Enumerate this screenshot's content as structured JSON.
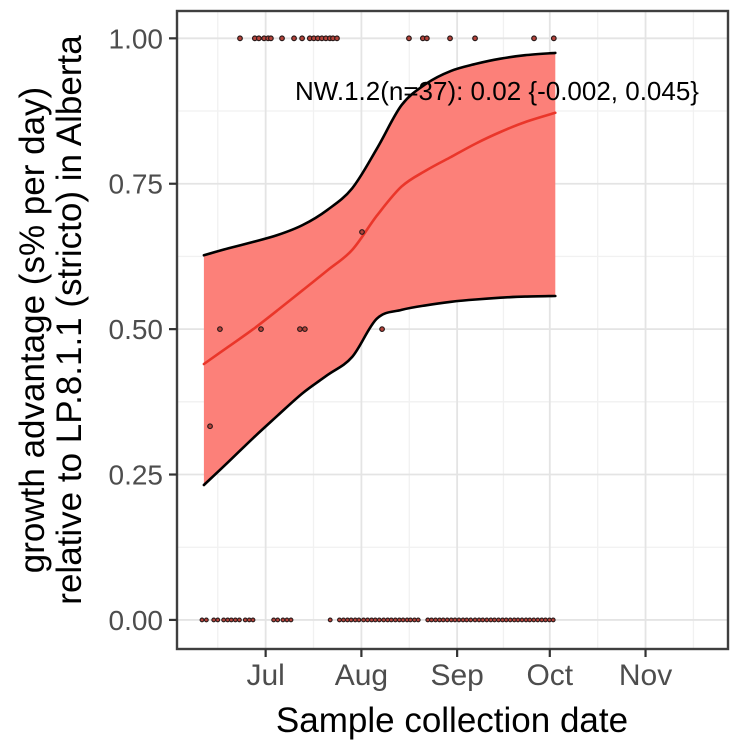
{
  "figure": {
    "x_title": "Sample collection date",
    "y_title_line1": "growth advantage (s% per day)",
    "y_title_line2": "relative to LP.8.1.1 (stricto) in Alberta",
    "annotation": "NW.1.2(n=37): 0.02 {-0.002, 0.045}"
  },
  "chart_data": {
    "type": "line",
    "title": "",
    "xlabel": "Sample collection date",
    "ylabel": "growth advantage (s% per day) relative to LP.8.1.1 (stricto) in Alberta",
    "annotation_text": "NW.1.2(n=37): 0.02 {-0.002, 0.045}",
    "estimate": {
      "variant": "NW.1.2",
      "n": 37,
      "growth_advantage": 0.02,
      "ci_low": -0.002,
      "ci_high": 0.045
    },
    "x_unit": "days since Jun 1",
    "xlim": [
      1.3,
      179.7
    ],
    "ylim": [
      -0.05,
      1.047
    ],
    "x_major_ticks": [
      {
        "label": "Jul",
        "day": 30
      },
      {
        "label": "Aug",
        "day": 61
      },
      {
        "label": "Sep",
        "day": 92
      },
      {
        "label": "Oct",
        "day": 122
      },
      {
        "label": "Nov",
        "day": 153
      }
    ],
    "x_minor_days": [
      14.5,
      45.5,
      76.5,
      107,
      137.5,
      168.5
    ],
    "y_major_ticks": [
      {
        "label": "0.00",
        "value": 0.0
      },
      {
        "label": "0.25",
        "value": 0.25
      },
      {
        "label": "0.50",
        "value": 0.5
      },
      {
        "label": "0.75",
        "value": 0.75
      },
      {
        "label": "1.00",
        "value": 1.0
      }
    ],
    "y_minor_values": [
      0.125,
      0.375,
      0.625,
      0.875
    ],
    "fit": {
      "x_days": [
        10,
        18,
        26,
        34,
        42,
        50,
        58,
        66,
        74,
        82,
        90,
        98,
        106,
        114,
        123.8
      ],
      "mean": [
        0.44,
        0.47,
        0.5,
        0.533,
        0.567,
        0.601,
        0.636,
        0.695,
        0.745,
        0.773,
        0.796,
        0.819,
        0.839,
        0.856,
        0.872
      ],
      "upper": [
        0.627,
        0.639,
        0.65,
        0.662,
        0.679,
        0.705,
        0.742,
        0.81,
        0.885,
        0.922,
        0.944,
        0.956,
        0.965,
        0.971,
        0.975
      ],
      "lower": [
        0.232,
        0.272,
        0.313,
        0.352,
        0.39,
        0.421,
        0.452,
        0.518,
        0.533,
        0.541,
        0.547,
        0.551,
        0.554,
        0.556,
        0.557
      ]
    },
    "points": {
      "ones_value": 1.0,
      "ones_days": [
        21.7,
        26.5,
        27.8,
        29.5,
        30.8,
        31.7,
        35.3,
        39.2,
        41.8,
        44.3,
        45.6,
        46.9,
        48.2,
        49.5,
        50.8,
        51.8,
        53.1,
        76.4,
        80.9,
        82.2,
        89.7,
        97.8,
        116.9,
        123.3
      ],
      "zeros_value": 0.0,
      "zeros_days": [
        9.4,
        10.8,
        13.2,
        14.5,
        16.4,
        17.7,
        18.9,
        20.2,
        21.5,
        23.4,
        24.7,
        25.9,
        32.6,
        33.9,
        35.6,
        36.9,
        38.2,
        50.9,
        53.9,
        55.2,
        56.5,
        57.7,
        59.0,
        60.2,
        61.7,
        63.0,
        64.3,
        65.5,
        66.8,
        68.2,
        69.5,
        70.7,
        72.0,
        73.3,
        74.5,
        75.8,
        76.9,
        78.2,
        79.4,
        82.5,
        83.7,
        85.0,
        86.3,
        87.5,
        88.8,
        90.1,
        91.3,
        92.6,
        93.9,
        95.1,
        96.4,
        97.8,
        99.1,
        100.3,
        101.6,
        102.9,
        104.1,
        105.4,
        106.7,
        107.9,
        109.2,
        110.5,
        111.7,
        113.0,
        114.3,
        115.5,
        116.8,
        118.1,
        119.4,
        120.6,
        121.9,
        123.1
      ],
      "mid_points": [
        {
          "day": 12.0,
          "value": 0.333
        },
        {
          "day": 15.2,
          "value": 0.5
        },
        {
          "day": 28.5,
          "value": 0.5
        },
        {
          "day": 41.1,
          "value": 0.5
        },
        {
          "day": 42.7,
          "value": 0.5
        },
        {
          "day": 61.2,
          "value": 0.667
        },
        {
          "day": 67.7,
          "value": 0.5
        }
      ]
    },
    "colors": {
      "band_fill": "#fc8079",
      "fit_line": "#ea362a",
      "boundary_line": "#000000",
      "grid_major": "#e4e4e4",
      "grid_minor": "#f1f1f1",
      "panel_border": "#3f3f3f",
      "tick_mark": "#333333",
      "axis_text": "#4d4d4d",
      "point_stroke": "#2a1a1a",
      "point_fill": "#b5433a"
    },
    "layout": {
      "grid": true,
      "legend": "none"
    }
  }
}
